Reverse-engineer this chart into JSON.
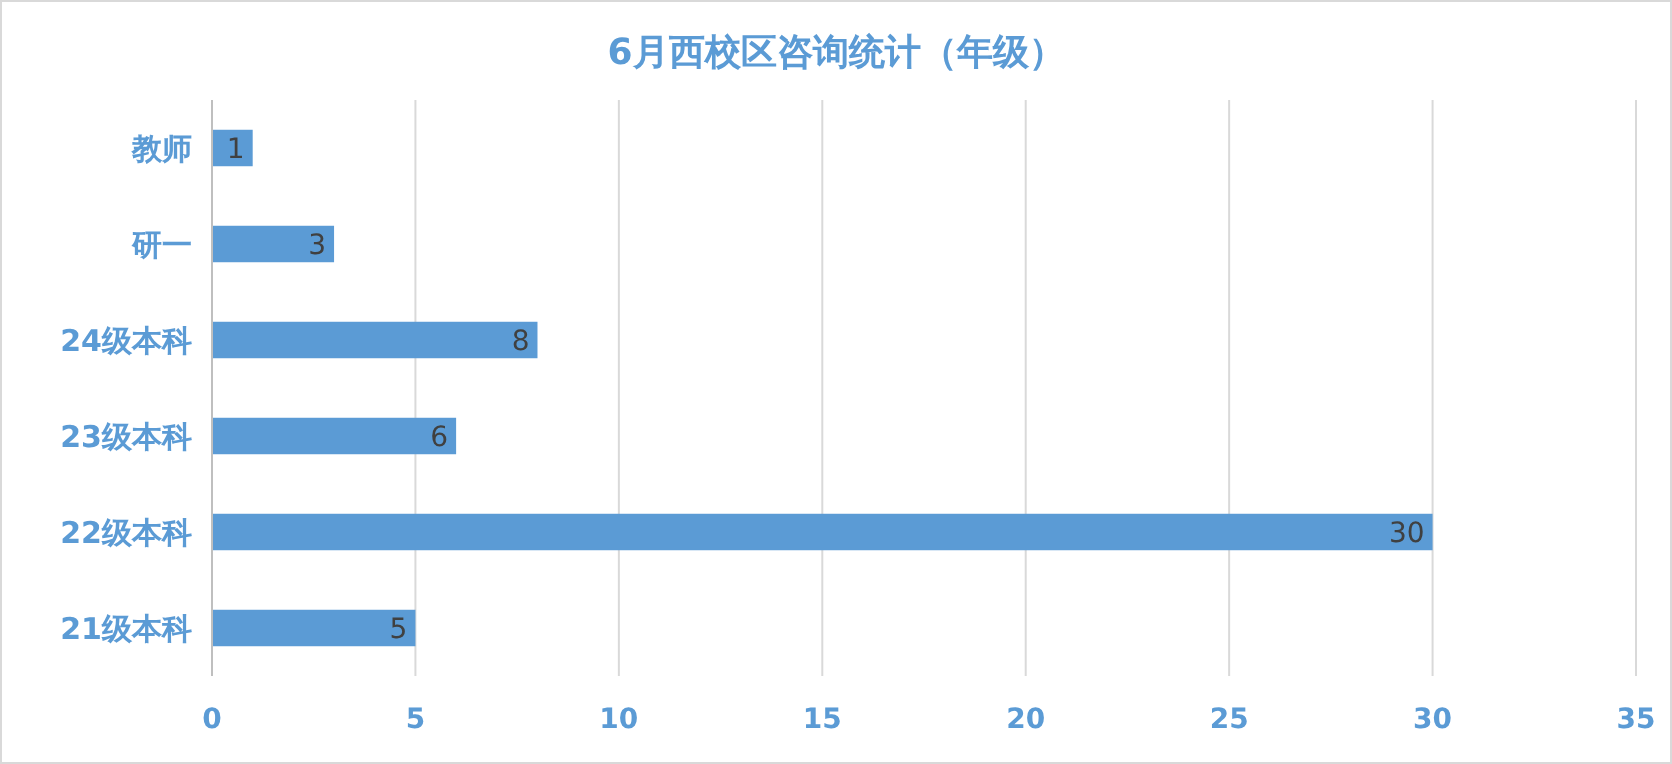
{
  "chart_data": {
    "type": "bar",
    "orientation": "horizontal",
    "title": "6月西校区咨询统计（年级）",
    "categories": [
      "教师",
      "研一",
      "24级本科",
      "23级本科",
      "22级本科",
      "21级本科"
    ],
    "values": [
      1,
      3,
      8,
      6,
      30,
      5
    ],
    "color": "#5b9bd5",
    "xlim": [
      0,
      35
    ],
    "xticks": [
      0,
      5,
      10,
      15,
      20,
      25,
      30,
      35
    ],
    "grid": "x",
    "data_labels": true
  }
}
